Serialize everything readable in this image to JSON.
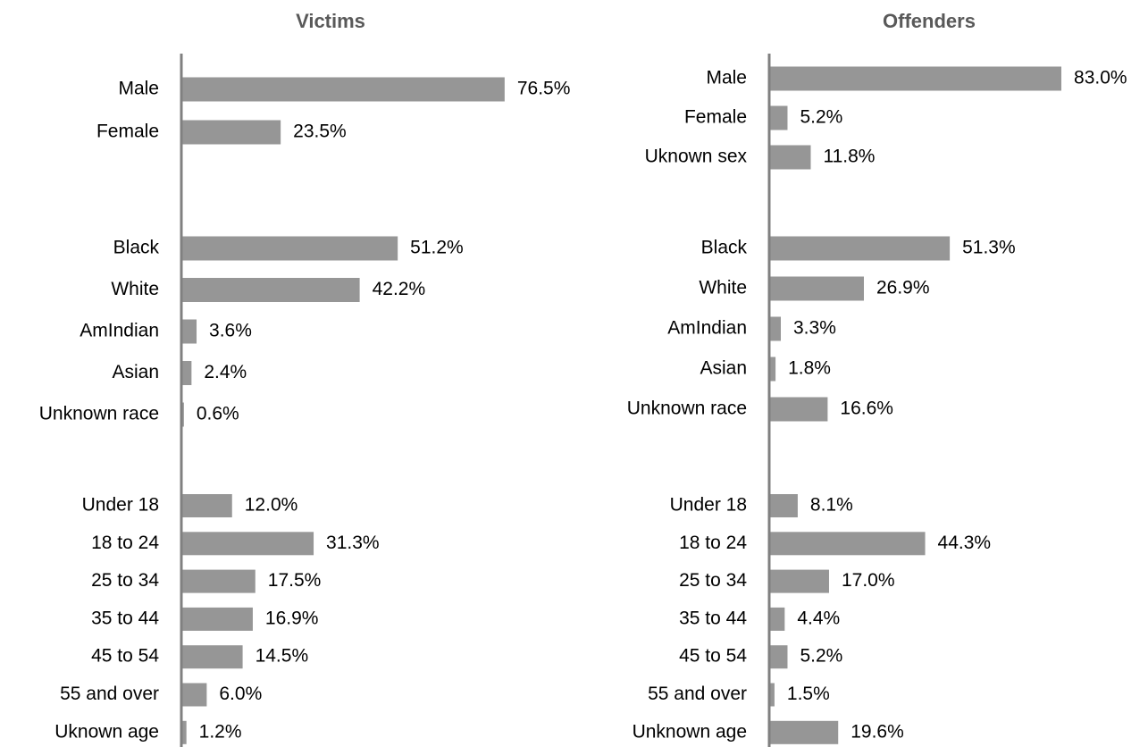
{
  "chart_data": [
    {
      "type": "barh",
      "title": "Victims",
      "color": "#969696",
      "groups": [
        {
          "categories": [
            "Male",
            "Female"
          ],
          "values": [
            76.5,
            23.5
          ],
          "value_labels": [
            "76.5%",
            "23.5%"
          ]
        },
        {
          "categories": [
            "Black",
            "White",
            "AmIndian",
            "Asian",
            "Unknown race"
          ],
          "values": [
            51.2,
            42.2,
            3.6,
            2.4,
            0.6
          ],
          "value_labels": [
            "51.2%",
            "42.2%",
            "3.6%",
            "2.4%",
            "0.6%"
          ]
        },
        {
          "categories": [
            "Under 18",
            "18 to 24",
            "25 to 34",
            "35 to 44",
            "45 to 54",
            "55 and over",
            "Uknown age"
          ],
          "values": [
            12.0,
            31.3,
            17.5,
            16.9,
            14.5,
            6.0,
            1.2
          ],
          "value_labels": [
            "12.0%",
            "31.3%",
            "17.5%",
            "16.9%",
            "14.5%",
            "6.0%",
            "1.2%"
          ]
        }
      ]
    },
    {
      "type": "barh",
      "title": "Offenders",
      "color": "#969696",
      "groups": [
        {
          "categories": [
            "Male",
            "Female",
            "Uknown sex"
          ],
          "values": [
            83.0,
            5.2,
            11.8
          ],
          "value_labels": [
            "83.0%",
            "5.2%",
            "11.8%"
          ]
        },
        {
          "categories": [
            "Black",
            "White",
            "AmIndian",
            "Asian",
            "Unknown race"
          ],
          "values": [
            51.3,
            26.9,
            3.3,
            1.8,
            16.6
          ],
          "value_labels": [
            "51.3%",
            "26.9%",
            "3.3%",
            "1.8%",
            "16.6%"
          ]
        },
        {
          "categories": [
            "Under 18",
            "18 to 24",
            "25 to 34",
            "35 to 44",
            "45 to 54",
            "55 and over",
            "Unknown age"
          ],
          "values": [
            8.1,
            44.3,
            17.0,
            4.4,
            5.2,
            1.5,
            19.6
          ],
          "value_labels": [
            "8.1%",
            "44.3%",
            "17.0%",
            "4.4%",
            "5.2%",
            "1.5%",
            "19.6%"
          ]
        }
      ]
    }
  ]
}
